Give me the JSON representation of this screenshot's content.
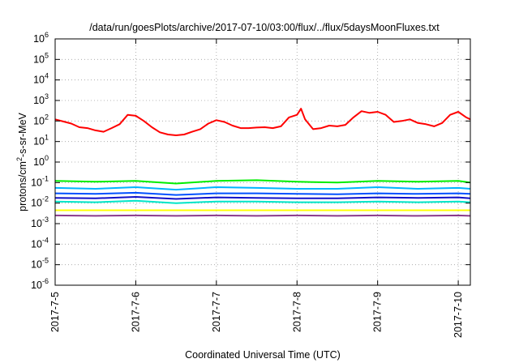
{
  "chart_data": {
    "type": "line",
    "title": "/data/run/goesPlots/archive/2017-07-10/03:00/flux/../flux/5daysMoonFluxes.txt",
    "xlabel": "Coordinated Universal Time (UTC)",
    "ylabel_base": "protons/cm",
    "ylabel_sup": "2",
    "ylabel_rest": "-s-sr-MeV",
    "y_scale": "log",
    "ylim": [
      1e-06,
      1000000.0
    ],
    "xlim": [
      0,
      5.15
    ],
    "x_ticks": [
      {
        "x": 0,
        "label": "2017-7-5"
      },
      {
        "x": 1,
        "label": "2017-7-6"
      },
      {
        "x": 2,
        "label": "2017-7-7"
      },
      {
        "x": 3,
        "label": "2017-7-8"
      },
      {
        "x": 4,
        "label": "2017-7-9"
      },
      {
        "x": 5,
        "label": "2017-7-10"
      }
    ],
    "y_ticks": [
      {
        "exp": -6,
        "base": "10",
        "sup": "-6"
      },
      {
        "exp": -5,
        "base": "10",
        "sup": "-5"
      },
      {
        "exp": -4,
        "base": "10",
        "sup": "-4"
      },
      {
        "exp": -3,
        "base": "10",
        "sup": "-3"
      },
      {
        "exp": -2,
        "base": "10",
        "sup": "-2"
      },
      {
        "exp": -1,
        "base": "10",
        "sup": "-1"
      },
      {
        "exp": 0,
        "base": "10",
        "sup": "0"
      },
      {
        "exp": 1,
        "base": "10",
        "sup": "1"
      },
      {
        "exp": 2,
        "base": "10",
        "sup": "2"
      },
      {
        "exp": 3,
        "base": "10",
        "sup": "3"
      },
      {
        "exp": 4,
        "base": "10",
        "sup": "4"
      },
      {
        "exp": 5,
        "base": "10",
        "sup": "5"
      },
      {
        "exp": 6,
        "base": "10",
        "sup": "6"
      }
    ],
    "grid": true,
    "series": [
      {
        "color": "#ff0000",
        "points": [
          [
            0,
            120
          ],
          [
            0.1,
            95
          ],
          [
            0.2,
            75
          ],
          [
            0.3,
            50
          ],
          [
            0.4,
            45
          ],
          [
            0.5,
            35
          ],
          [
            0.6,
            30
          ],
          [
            0.7,
            45
          ],
          [
            0.8,
            70
          ],
          [
            0.9,
            200
          ],
          [
            1,
            180
          ],
          [
            1.1,
            100
          ],
          [
            1.2,
            50
          ],
          [
            1.3,
            28
          ],
          [
            1.4,
            22
          ],
          [
            1.5,
            20
          ],
          [
            1.6,
            22
          ],
          [
            1.7,
            30
          ],
          [
            1.8,
            40
          ],
          [
            1.9,
            75
          ],
          [
            2,
            110
          ],
          [
            2.1,
            90
          ],
          [
            2.2,
            60
          ],
          [
            2.3,
            45
          ],
          [
            2.4,
            45
          ],
          [
            2.5,
            48
          ],
          [
            2.6,
            50
          ],
          [
            2.7,
            45
          ],
          [
            2.8,
            55
          ],
          [
            2.9,
            150
          ],
          [
            3,
            200
          ],
          [
            3.05,
            400
          ],
          [
            3.1,
            120
          ],
          [
            3.2,
            40
          ],
          [
            3.3,
            45
          ],
          [
            3.4,
            60
          ],
          [
            3.5,
            55
          ],
          [
            3.6,
            65
          ],
          [
            3.7,
            150
          ],
          [
            3.8,
            300
          ],
          [
            3.9,
            250
          ],
          [
            4,
            280
          ],
          [
            4.1,
            200
          ],
          [
            4.2,
            90
          ],
          [
            4.3,
            100
          ],
          [
            4.4,
            120
          ],
          [
            4.5,
            80
          ],
          [
            4.6,
            70
          ],
          [
            4.7,
            55
          ],
          [
            4.8,
            80
          ],
          [
            4.9,
            200
          ],
          [
            5,
            280
          ],
          [
            5.1,
            150
          ],
          [
            5.15,
            120
          ]
        ]
      },
      {
        "color": "#00ee00",
        "points": [
          [
            0,
            0.12
          ],
          [
            0.5,
            0.11
          ],
          [
            1,
            0.12
          ],
          [
            1.5,
            0.09
          ],
          [
            2,
            0.12
          ],
          [
            2.5,
            0.13
          ],
          [
            3,
            0.11
          ],
          [
            3.5,
            0.1
          ],
          [
            4,
            0.12
          ],
          [
            4.5,
            0.11
          ],
          [
            5,
            0.12
          ],
          [
            5.15,
            0.1
          ]
        ]
      },
      {
        "color": "#00b4ff",
        "points": [
          [
            0,
            0.055
          ],
          [
            0.5,
            0.05
          ],
          [
            1,
            0.06
          ],
          [
            1.5,
            0.045
          ],
          [
            2,
            0.06
          ],
          [
            2.5,
            0.055
          ],
          [
            3,
            0.05
          ],
          [
            3.5,
            0.05
          ],
          [
            4,
            0.06
          ],
          [
            4.5,
            0.05
          ],
          [
            5,
            0.055
          ],
          [
            5.15,
            0.05
          ]
        ]
      },
      {
        "color": "#00e5c8",
        "points": [
          [
            0,
            0.012
          ],
          [
            0.5,
            0.011
          ],
          [
            1,
            0.013
          ],
          [
            1.5,
            0.01
          ],
          [
            2,
            0.012
          ],
          [
            2.5,
            0.012
          ],
          [
            3,
            0.011
          ],
          [
            3.5,
            0.011
          ],
          [
            4,
            0.012
          ],
          [
            4.5,
            0.011
          ],
          [
            5,
            0.012
          ],
          [
            5.15,
            0.011
          ]
        ]
      },
      {
        "color": "#0050ff",
        "points": [
          [
            0,
            0.03
          ],
          [
            0.5,
            0.028
          ],
          [
            1,
            0.032
          ],
          [
            1.5,
            0.025
          ],
          [
            2,
            0.03
          ],
          [
            2.5,
            0.03
          ],
          [
            3,
            0.028
          ],
          [
            3.5,
            0.027
          ],
          [
            4,
            0.03
          ],
          [
            4.5,
            0.028
          ],
          [
            5,
            0.03
          ],
          [
            5.15,
            0.028
          ]
        ]
      },
      {
        "color": "#1010c8",
        "points": [
          [
            0,
            0.018
          ],
          [
            0.5,
            0.017
          ],
          [
            1,
            0.02
          ],
          [
            1.5,
            0.016
          ],
          [
            2,
            0.019
          ],
          [
            2.5,
            0.018
          ],
          [
            3,
            0.017
          ],
          [
            3.5,
            0.017
          ],
          [
            4,
            0.019
          ],
          [
            4.5,
            0.018
          ],
          [
            5,
            0.019
          ],
          [
            5.15,
            0.017
          ]
        ]
      },
      {
        "color": "#ffff00",
        "points": [
          [
            0,
            0.0045
          ],
          [
            1,
            0.0045
          ],
          [
            2,
            0.0045
          ],
          [
            3,
            0.0045
          ],
          [
            4,
            0.0045
          ],
          [
            5,
            0.0045
          ],
          [
            5.15,
            0.0045
          ]
        ]
      },
      {
        "color": "#8b3a8b",
        "points": [
          [
            0,
            0.0025
          ],
          [
            0.5,
            0.0024
          ],
          [
            1,
            0.0025
          ],
          [
            1.5,
            0.0024
          ],
          [
            2,
            0.0025
          ],
          [
            2.5,
            0.0024
          ],
          [
            3,
            0.0025
          ],
          [
            3.5,
            0.0024
          ],
          [
            4,
            0.0025
          ],
          [
            4.5,
            0.0024
          ],
          [
            5,
            0.0025
          ],
          [
            5.15,
            0.0024
          ]
        ]
      }
    ]
  }
}
